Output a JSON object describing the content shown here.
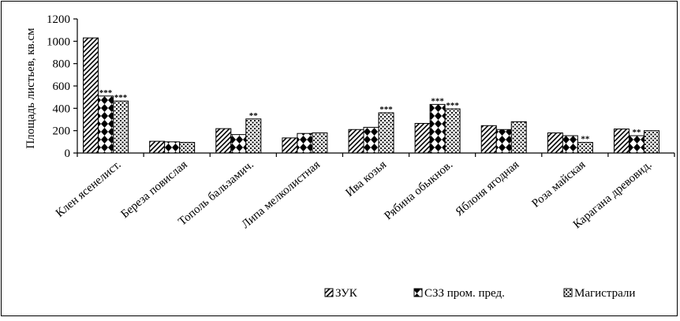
{
  "chart_data": {
    "type": "bar",
    "title": "",
    "xlabel": "",
    "ylabel": "Площадь листьев, кв.см",
    "ylim": [
      0,
      1200
    ],
    "yticks": [
      0,
      200,
      400,
      600,
      800,
      1000,
      1200
    ],
    "grid": false,
    "legend_position": "bottom-right",
    "categories": [
      "Клен ясенелист.",
      "Береза повислая",
      "Тополь бальзамич.",
      "Липа мелколистная",
      "Ива козья",
      "Рябина обыкнов.",
      "Яблоня ягодная",
      "Роза майская",
      "Карагана древовид."
    ],
    "series": [
      {
        "name": "ЗУК",
        "pattern": "diagonal-hatch",
        "values": [
          1030,
          105,
          218,
          135,
          210,
          265,
          245,
          180,
          215
        ],
        "annotations": [
          "",
          "",
          "",
          "",
          "",
          "",
          "",
          "",
          ""
        ]
      },
      {
        "name": "СЗЗ пром. пред.",
        "pattern": "diamonds",
        "values": [
          510,
          100,
          165,
          175,
          230,
          435,
          210,
          155,
          155
        ],
        "annotations": [
          "***",
          "",
          "",
          "",
          "",
          "***",
          "",
          "",
          "**"
        ]
      },
      {
        "name": "Магистрали",
        "pattern": "dots",
        "values": [
          465,
          95,
          305,
          180,
          360,
          395,
          280,
          95,
          200
        ],
        "annotations": [
          "***",
          "",
          "**",
          "",
          "***",
          "***",
          "",
          "**",
          ""
        ]
      }
    ]
  }
}
